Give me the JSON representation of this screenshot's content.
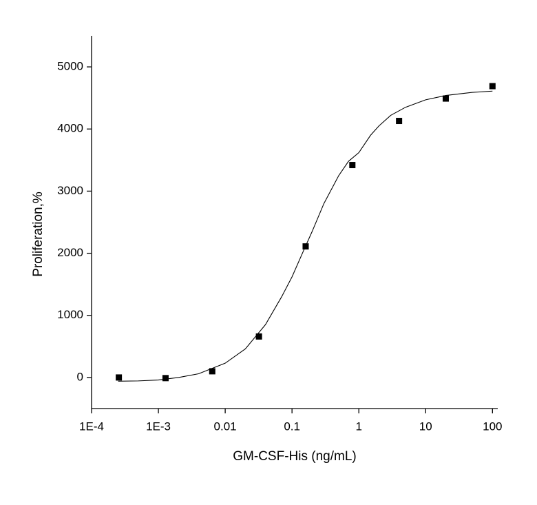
{
  "chart_data": {
    "type": "scatter",
    "xlabel": "GM-CSF-His (ng/mL)",
    "ylabel": "Proliferation,%",
    "xscale": "log",
    "xlim": [
      0.0001,
      120
    ],
    "ylim": [
      -500,
      5500
    ],
    "xticks": [
      {
        "value": 0.0001,
        "label": "1E-4"
      },
      {
        "value": 0.001,
        "label": "1E-3"
      },
      0.01,
      0.1,
      1,
      10,
      100
    ],
    "yticks": [
      0,
      1000,
      2000,
      3000,
      4000,
      5000
    ],
    "series": [
      {
        "type": "scatter",
        "color": "#000000",
        "x": [
          0.000256,
          0.00128,
          0.0064,
          0.032,
          0.16,
          0.8,
          4,
          20,
          100
        ],
        "values": [
          0,
          -10,
          100,
          660,
          2110,
          3420,
          4130,
          4490,
          4690
        ]
      },
      {
        "type": "line",
        "color": "#000000",
        "x": [
          0.00025,
          0.0005,
          0.001,
          0.002,
          0.004,
          0.01,
          0.02,
          0.04,
          0.07,
          0.1,
          0.15,
          0.2,
          0.3,
          0.5,
          0.7,
          1,
          1.5,
          2,
          3,
          5,
          10,
          20,
          50,
          100
        ],
        "values": [
          -60,
          -55,
          -40,
          0,
          60,
          230,
          460,
          850,
          1300,
          1620,
          2050,
          2350,
          2800,
          3250,
          3480,
          3620,
          3900,
          4050,
          4220,
          4350,
          4470,
          4540,
          4590,
          4610
        ]
      }
    ]
  }
}
